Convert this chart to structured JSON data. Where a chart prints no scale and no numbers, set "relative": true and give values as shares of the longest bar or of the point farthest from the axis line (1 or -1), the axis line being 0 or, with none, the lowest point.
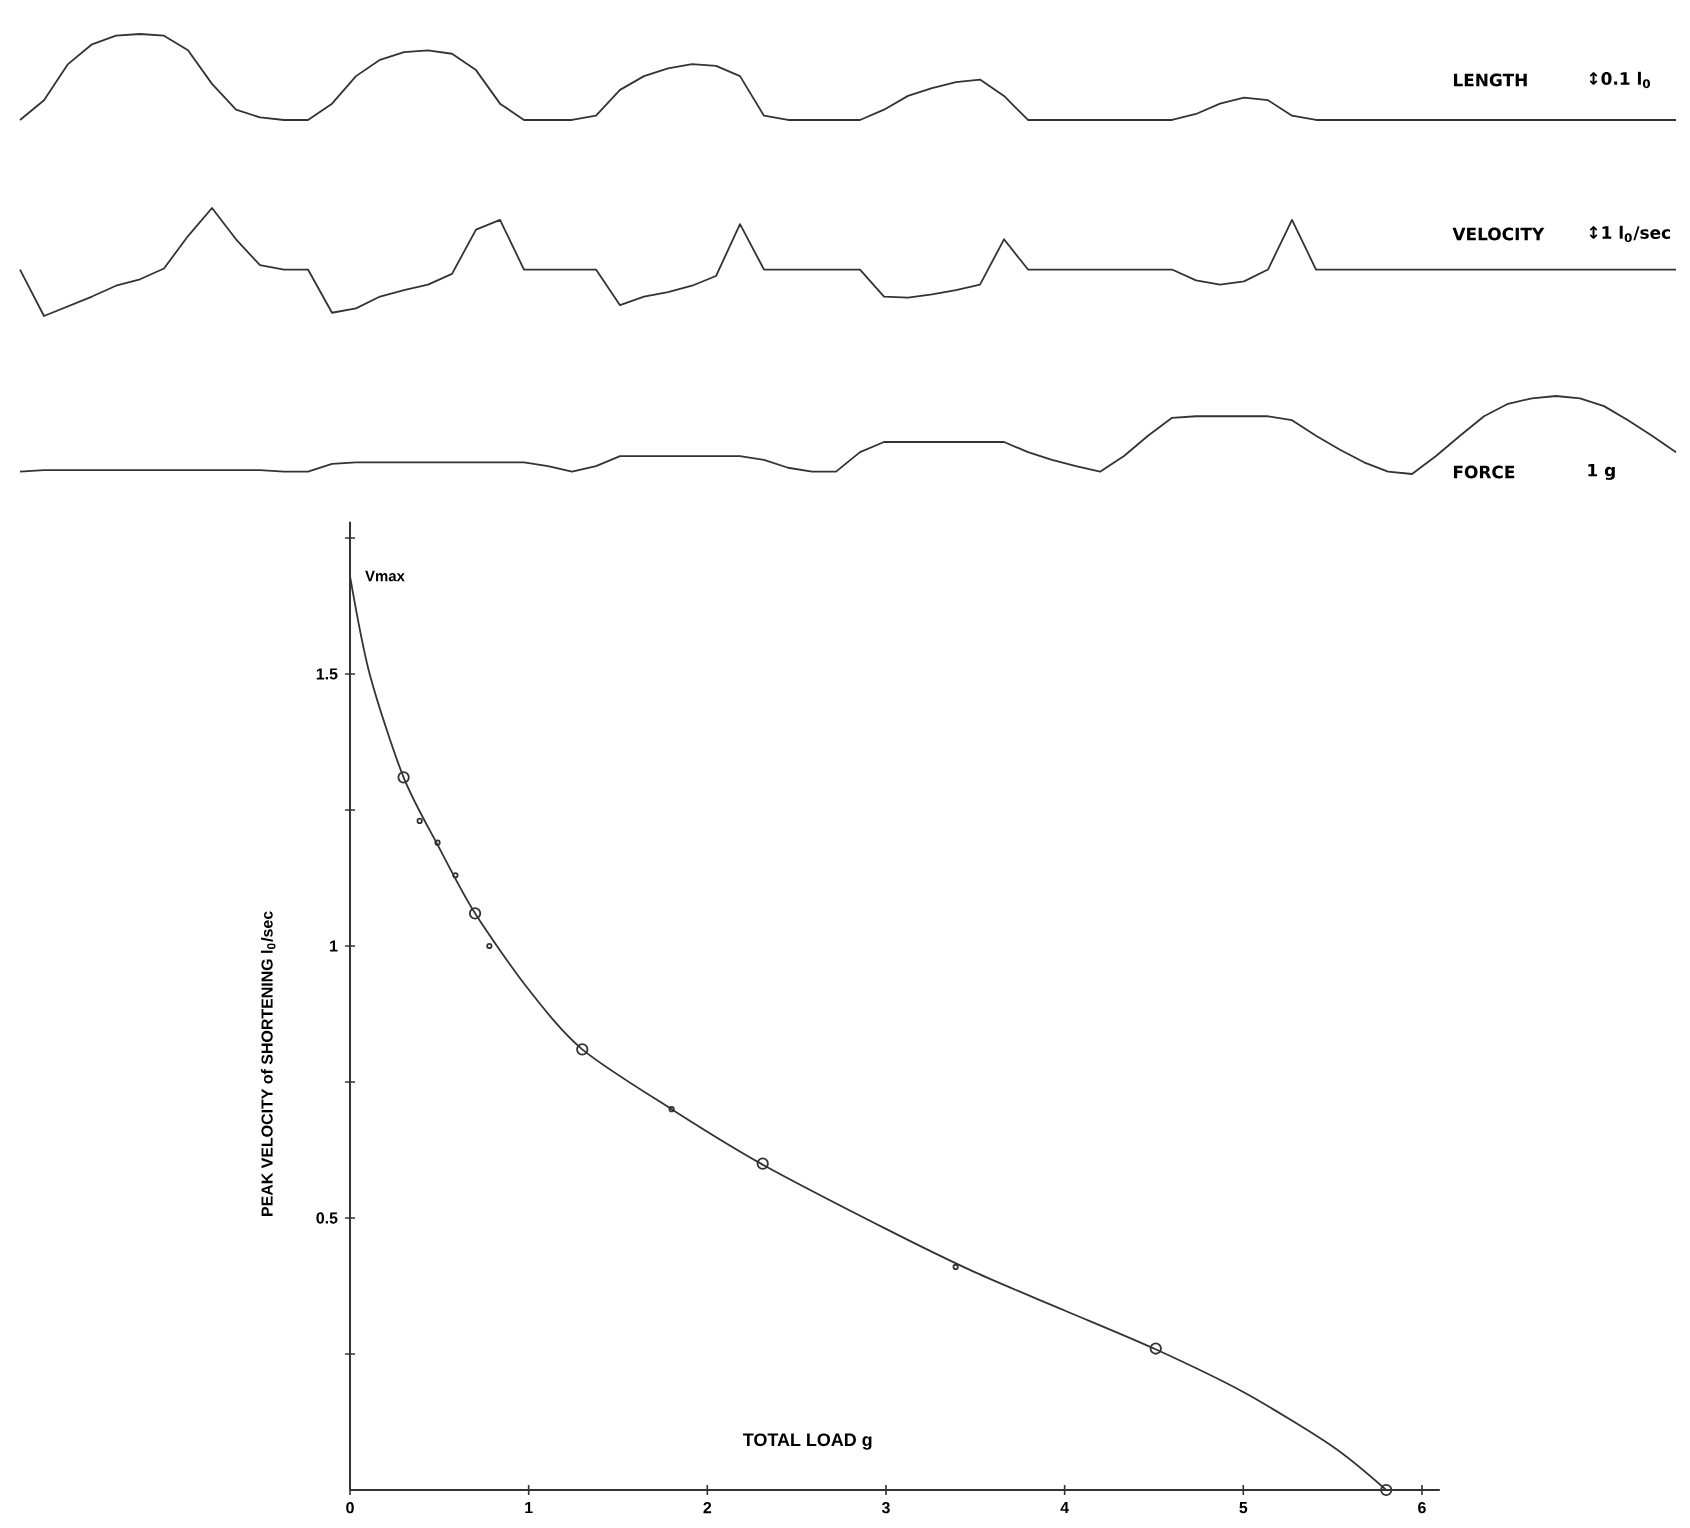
{
  "chart_data": [
    {
      "type": "line",
      "relative": true,
      "annotations": [
        "LENGTH",
        "↕0.1 l$_{0}$"
      ],
      "categories": [
        null,
        null,
        null,
        null,
        null,
        null,
        null,
        null,
        null,
        null,
        null,
        null,
        null,
        null,
        null,
        null,
        null,
        null,
        null,
        null,
        null,
        null,
        null,
        null,
        null,
        null,
        null,
        null,
        null,
        null,
        null,
        null,
        null,
        null,
        null,
        null,
        null,
        null,
        null,
        null,
        null,
        null,
        null,
        null,
        null,
        null,
        null,
        null,
        null,
        null,
        null,
        null,
        null,
        null,
        null,
        null,
        null,
        null,
        null,
        null,
        null,
        null,
        null,
        null,
        null,
        null,
        null,
        null,
        null,
        null
      ],
      "series": [
        {
          "color": "#333333",
          "values": [
            0,
            0.23,
            0.65,
            0.88,
            0.98,
            1.0,
            0.98,
            0.81,
            0.42,
            0.12,
            0.03,
            0,
            0,
            0.19,
            0.51,
            0.7,
            0.79,
            0.81,
            0.77,
            0.58,
            0.19,
            0,
            0,
            0,
            0.05,
            0.35,
            0.51,
            0.6,
            0.65,
            0.63,
            0.51,
            0.05,
            0,
            0,
            0,
            0,
            0.12,
            0.28,
            0.37,
            0.44,
            0.47,
            0.28,
            0,
            0,
            0,
            0,
            0,
            0,
            0,
            0.07,
            0.19,
            0.26,
            0.23,
            0.05,
            0,
            0,
            0,
            0,
            0,
            0,
            0,
            0,
            0,
            0,
            0,
            0,
            0,
            0,
            0,
            0
          ]
        }
      ]
    },
    {
      "type": "line",
      "relative": true,
      "annotations": [
        "VELOCITY",
        "↕1 l$_{0}$/sec"
      ],
      "categories": [
        null,
        null,
        null,
        null,
        null,
        null,
        null,
        null,
        null,
        null,
        null,
        null,
        null,
        null,
        null,
        null,
        null,
        null,
        null,
        null,
        null,
        null,
        null,
        null,
        null,
        null,
        null,
        null,
        null,
        null,
        null,
        null,
        null,
        null,
        null,
        null,
        null,
        null,
        null,
        null,
        null,
        null,
        null,
        null,
        null,
        null,
        null,
        null,
        null,
        null,
        null,
        null,
        null,
        null,
        null,
        null,
        null,
        null,
        null,
        null,
        null,
        null,
        null,
        null,
        null,
        null,
        null,
        null,
        null,
        null
      ],
      "series": [
        {
          "color": "#333333",
          "values": [
            0.43,
            0,
            0.09,
            0.18,
            0.28,
            0.34,
            0.44,
            0.74,
            1,
            0.71,
            0.47,
            0.43,
            0.43,
            0.03,
            0.07,
            0.18,
            0.24,
            0.29,
            0.39,
            0.8,
            0.89,
            0.43,
            0.43,
            0.43,
            0.43,
            0.1,
            0.18,
            0.22,
            0.28,
            0.37,
            0.85,
            0.43,
            0.43,
            0.43,
            0.43,
            0.43,
            0.18,
            0.17,
            0.2,
            0.24,
            0.29,
            0.71,
            0.43,
            0.43,
            0.43,
            0.43,
            0.43,
            0.43,
            0.43,
            0.33,
            0.29,
            0.32,
            0.43,
            0.89,
            0.43,
            0.43,
            0.43,
            0.43,
            0.43,
            0.43,
            0.43,
            0.43,
            0.43,
            0.43,
            0.43,
            0.43,
            0.43,
            0.43,
            0.43,
            0.43
          ]
        }
      ]
    },
    {
      "type": "line",
      "relative": true,
      "annotations": [
        "FORCE",
        "1 g"
      ],
      "categories": [
        null,
        null,
        null,
        null,
        null,
        null,
        null,
        null,
        null,
        null,
        null,
        null,
        null,
        null,
        null,
        null,
        null,
        null,
        null,
        null,
        null,
        null,
        null,
        null,
        null,
        null,
        null,
        null,
        null,
        null,
        null,
        null,
        null,
        null,
        null,
        null,
        null,
        null,
        null,
        null,
        null,
        null,
        null,
        null,
        null,
        null,
        null,
        null,
        null,
        null,
        null,
        null,
        null,
        null,
        null,
        null,
        null,
        null,
        null,
        null,
        null,
        null,
        null,
        null,
        null,
        null,
        null,
        null,
        null,
        null
      ],
      "series": [
        {
          "color": "#333333",
          "values": [
            0.03,
            0.05,
            0.05,
            0.05,
            0.05,
            0.05,
            0.05,
            0.05,
            0.05,
            0.05,
            0.05,
            0.03,
            0.03,
            0.13,
            0.15,
            0.15,
            0.15,
            0.15,
            0.15,
            0.15,
            0.15,
            0.15,
            0.1,
            0.03,
            0.1,
            0.23,
            0.23,
            0.23,
            0.23,
            0.23,
            0.23,
            0.18,
            0.08,
            0.03,
            0.03,
            0.28,
            0.41,
            0.41,
            0.41,
            0.41,
            0.41,
            0.41,
            0.28,
            0.18,
            0.1,
            0.03,
            0.23,
            0.49,
            0.72,
            0.74,
            0.74,
            0.74,
            0.74,
            0.69,
            0.49,
            0.31,
            0.15,
            0.03,
            0,
            0.23,
            0.49,
            0.74,
            0.9,
            0.97,
            1.0,
            0.97,
            0.87,
            0.69,
            0.49,
            0.28
          ]
        }
      ]
    },
    {
      "type": "line",
      "xlabel": "TOTAL LOAD g",
      "ylabel": "PEAK VELOCITY of SHORTENING  l$_{0}$/sec",
      "annotations": [
        {
          "text": "Vmax",
          "x": 0,
          "y": 1.68
        }
      ],
      "xlim": [
        0,
        6.1
      ],
      "ylim": [
        0,
        1.78
      ],
      "xticks": [
        0,
        1,
        2,
        3,
        4,
        5,
        6
      ],
      "yticks": [
        {
          "value": 0.25,
          "label": null
        },
        0.5,
        {
          "value": 0.75,
          "label": null
        },
        1,
        {
          "value": 1.25,
          "label": null
        },
        1.5,
        {
          "value": 1.75,
          "label": null
        }
      ],
      "series": [
        {
          "type": "line",
          "color": "#333333",
          "x": [
            0,
            0.11,
            0.3,
            0.5,
            0.7,
            1.0,
            1.3,
            1.8,
            2.3,
            3.0,
            3.5,
            4.0,
            4.5,
            5.0,
            5.5,
            5.8
          ],
          "values": [
            1.68,
            1.5,
            1.31,
            1.18,
            1.06,
            0.92,
            0.81,
            0.7,
            0.6,
            0.48,
            0.4,
            0.33,
            0.26,
            0.18,
            0.08,
            0
          ]
        },
        {
          "type": "scatter",
          "marker": "circle",
          "color": "#333333",
          "x": [
            0.3,
            0.7,
            1.3,
            2.31,
            4.51,
            5.8
          ],
          "values": [
            1.31,
            1.06,
            0.81,
            0.6,
            0.26,
            0
          ]
        },
        {
          "type": "scatter",
          "marker": "circle",
          "color": "#333333",
          "x": [
            0.39,
            0.49,
            0.59,
            0.78,
            1.8,
            3.39
          ],
          "values": [
            1.23,
            1.19,
            1.13,
            1.0,
            0.7,
            0.41
          ]
        }
      ]
    }
  ]
}
